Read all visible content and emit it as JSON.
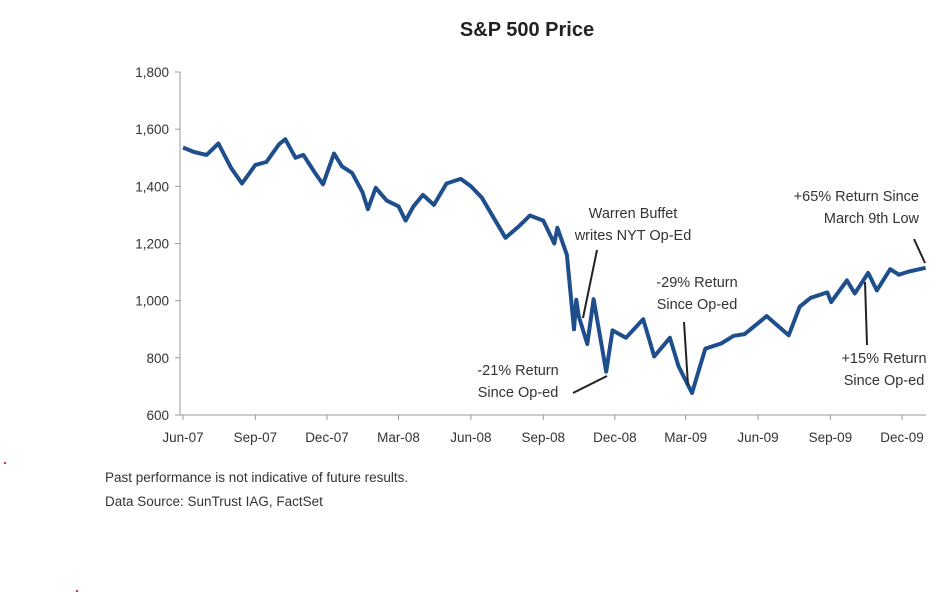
{
  "chart_data": {
    "type": "line",
    "title": "S&P 500 Price",
    "xlabel": "",
    "ylabel": "",
    "ylim": [
      600,
      1800
    ],
    "yticks": [
      "600",
      "800",
      "1,000",
      "1,200",
      "1,400",
      "1,600",
      "1,800"
    ],
    "ytick_values": [
      600,
      800,
      1000,
      1200,
      1400,
      1600,
      1800
    ],
    "xticks": [
      "Jun-07",
      "Sep-07",
      "Dec-07",
      "Mar-08",
      "Jun-08",
      "Sep-08",
      "Dec-08",
      "Mar-09",
      "Jun-09",
      "Sep-09",
      "Dec-09"
    ],
    "xtick_dates": [
      "2007-06-01",
      "2007-09-01",
      "2007-12-01",
      "2008-03-01",
      "2008-06-01",
      "2008-09-01",
      "2008-12-01",
      "2009-03-01",
      "2009-06-01",
      "2009-09-01",
      "2009-12-01"
    ],
    "grid": false,
    "line_color": "#1f4e8c",
    "series": [
      {
        "x": [
          "2007-06-01",
          "2007-06-15",
          "2007-07-01",
          "2007-07-16",
          "2007-08-01",
          "2007-08-15",
          "2007-09-01",
          "2007-09-15",
          "2007-10-01",
          "2007-10-09",
          "2007-10-22",
          "2007-11-01",
          "2007-11-15",
          "2007-11-26",
          "2007-12-10",
          "2007-12-20",
          "2008-01-02",
          "2008-01-15",
          "2008-01-22",
          "2008-02-01",
          "2008-02-15",
          "2008-03-01",
          "2008-03-10",
          "2008-03-20",
          "2008-04-01",
          "2008-04-15",
          "2008-05-01",
          "2008-05-19",
          "2008-06-01",
          "2008-06-15",
          "2008-07-01",
          "2008-07-15",
          "2008-08-01",
          "2008-08-15",
          "2008-09-01",
          "2008-09-15",
          "2008-09-19",
          "2008-10-01",
          "2008-10-10",
          "2008-10-13",
          "2008-10-16",
          "2008-10-27",
          "2008-11-04",
          "2008-11-20",
          "2008-11-28",
          "2008-12-15",
          "2009-01-06",
          "2009-01-20",
          "2009-02-09",
          "2009-02-20",
          "2009-03-09",
          "2009-03-26",
          "2009-04-15",
          "2009-05-01",
          "2009-05-15",
          "2009-06-12",
          "2009-07-10",
          "2009-07-24",
          "2009-08-07",
          "2009-08-28",
          "2009-09-02",
          "2009-09-22",
          "2009-10-02",
          "2009-10-19",
          "2009-10-30",
          "2009-11-16",
          "2009-11-27",
          "2009-12-10",
          "2009-12-31"
        ],
        "values": [
          1536,
          1520,
          1510,
          1550,
          1465,
          1410,
          1475,
          1485,
          1547,
          1565,
          1500,
          1510,
          1450,
          1407,
          1515,
          1470,
          1447,
          1380,
          1320,
          1395,
          1350,
          1330,
          1280,
          1330,
          1370,
          1335,
          1410,
          1426,
          1400,
          1360,
          1285,
          1220,
          1260,
          1298,
          1280,
          1200,
          1255,
          1160,
          900,
          1003,
          946,
          848,
          1005,
          752,
          896,
          870,
          935,
          805,
          870,
          770,
          677,
          832,
          850,
          877,
          883,
          946,
          879,
          979,
          1010,
          1029,
          995,
          1071,
          1025,
          1097,
          1036,
          1110,
          1091,
          1102,
          1115
        ]
      }
    ],
    "annotations": [
      {
        "id": "buffett",
        "lines": [
          "Warren Buffet",
          "writes NYT Op-Ed"
        ]
      },
      {
        "id": "minus21",
        "lines": [
          "-21% Return",
          "Since Op-ed"
        ]
      },
      {
        "id": "minus29",
        "lines": [
          "-29% Return",
          "Since Op-ed"
        ]
      },
      {
        "id": "plus15",
        "lines": [
          "+15% Return",
          "Since Op-ed"
        ]
      },
      {
        "id": "plus65",
        "lines": [
          "+65% Return Since",
          "March 9th Low"
        ]
      }
    ]
  },
  "footnotes": {
    "disclaimer": "Past performance is not indicative of future results.",
    "source": "Data Source: SunTrust IAG, FactSet"
  }
}
